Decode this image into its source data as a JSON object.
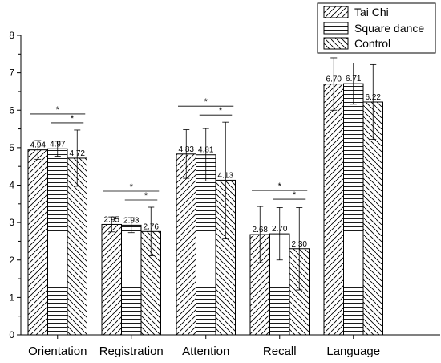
{
  "chart_data": {
    "type": "bar",
    "categories": [
      "Orientation",
      "Registration",
      "Attention",
      "Recall",
      "Language"
    ],
    "series": [
      {
        "name": "Tai Chi",
        "values": [
          4.94,
          2.95,
          4.83,
          2.68,
          6.7
        ],
        "error": [
          0.25,
          0.2,
          0.65,
          0.75,
          0.7
        ],
        "pattern": "diag-up"
      },
      {
        "name": "Square dance",
        "values": [
          4.97,
          2.93,
          4.81,
          2.7,
          6.71
        ],
        "error": [
          0.2,
          0.2,
          0.7,
          0.7,
          0.55
        ],
        "pattern": "horizontal"
      },
      {
        "name": "Control",
        "values": [
          4.72,
          2.76,
          4.13,
          2.3,
          6.22
        ],
        "error": [
          0.75,
          0.65,
          1.55,
          1.1,
          1.0
        ],
        "pattern": "diag-down"
      }
    ],
    "data_labels": [
      [
        "4.94",
        "4.97",
        "4.72"
      ],
      [
        "2.95",
        "2.93",
        "2.76"
      ],
      [
        "4.83",
        "4.81",
        "4.13"
      ],
      [
        "2.68",
        "2.70",
        "2.30"
      ],
      [
        "6.70",
        "6.71",
        "6.22"
      ]
    ],
    "significance_mark": "*",
    "significance_pairs": [
      [
        "Tai Chi",
        "Control"
      ],
      [
        "Square dance",
        "Control"
      ]
    ],
    "ylim": [
      0,
      8
    ],
    "yticks": [
      "0",
      "1",
      "2",
      "3",
      "4",
      "5",
      "6",
      "7",
      "8"
    ],
    "xlabel": "",
    "ylabel": "",
    "title": "",
    "legend_position": "top-right",
    "grid": false,
    "colors": {
      "bar_fill": "#ffffff",
      "bar_stroke": "#000000",
      "hatch": "#000000"
    }
  }
}
